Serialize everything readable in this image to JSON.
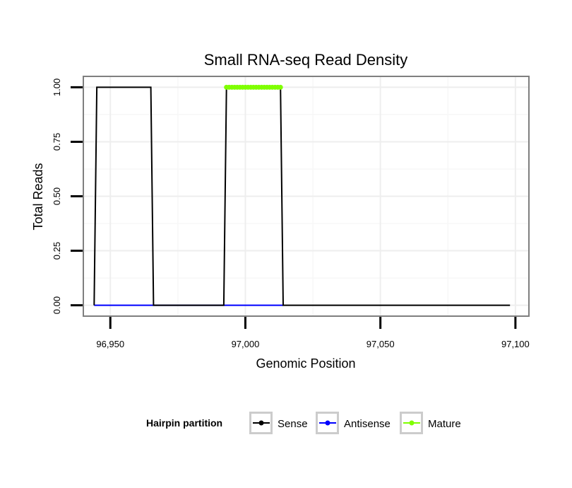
{
  "chart_data": {
    "type": "line",
    "title": "Small RNA-seq Read Density",
    "xlabel": "Genomic Position",
    "ylabel": "Total Reads",
    "xlim": [
      96940,
      97105
    ],
    "ylim": [
      -0.05,
      1.05
    ],
    "x_ticks": [
      96950,
      97000,
      97050,
      97100
    ],
    "x_tick_labels": [
      "96,950",
      "97,000",
      "97,050",
      "97,100"
    ],
    "y_ticks": [
      0,
      0.25,
      0.5,
      0.75,
      1
    ],
    "y_tick_labels": [
      "0.00",
      "0.25",
      "0.50",
      "0.75",
      "1.00"
    ],
    "grid": true,
    "legend": {
      "title": "Hairpin partition",
      "placement": "bottom",
      "entries": [
        "Sense",
        "Antisense",
        "Mature"
      ]
    },
    "series": [
      {
        "name": "Sense",
        "color": "#000000",
        "style": "line",
        "x": [
          96944,
          96945,
          96965,
          96966,
          96992,
          96993,
          97013,
          97014,
          97098
        ],
        "y": [
          0,
          1,
          1,
          0,
          0,
          1,
          1,
          0,
          0
        ]
      },
      {
        "name": "Antisense",
        "color": "#0000ff",
        "style": "line",
        "x": [
          96944,
          97014
        ],
        "y": [
          0,
          0
        ]
      },
      {
        "name": "Mature",
        "color": "#7fff00",
        "style": "points",
        "x": [
          96993,
          96994,
          96995,
          96996,
          96997,
          96998,
          96999,
          97000,
          97001,
          97002,
          97003,
          97004,
          97005,
          97006,
          97007,
          97008,
          97009,
          97010,
          97011,
          97012,
          97013
        ],
        "y": [
          1,
          1,
          1,
          1,
          1,
          1,
          1,
          1,
          1,
          1,
          1,
          1,
          1,
          1,
          1,
          1,
          1,
          1,
          1,
          1,
          1
        ]
      }
    ]
  }
}
